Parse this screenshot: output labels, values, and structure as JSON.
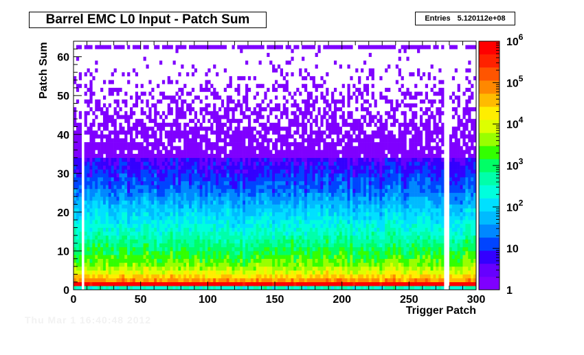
{
  "title": "Barrel EMC L0 Input - Patch Sum",
  "stats": {
    "label": "Entries",
    "value": "5.120112e+08"
  },
  "footer_text": "Thu Mar  1 16:40:48 2012",
  "chart_data": {
    "type": "heatmap",
    "title": "Barrel EMC L0 Input - Patch Sum",
    "xlabel": "Trigger Patch",
    "ylabel": "Patch Sum",
    "xlim": [
      0,
      300
    ],
    "ylim": [
      0,
      64
    ],
    "x_ticks": [
      0,
      50,
      100,
      150,
      200,
      250,
      300
    ],
    "y_ticks": [
      0,
      10,
      20,
      30,
      40,
      50,
      60
    ],
    "z_scale": "log",
    "zlim": [
      1,
      1000000
    ],
    "z_ticks": [
      {
        "base": "1",
        "exp": ""
      },
      {
        "base": "10",
        "exp": ""
      },
      {
        "base": "10",
        "exp": "2"
      },
      {
        "base": "10",
        "exp": "3"
      },
      {
        "base": "10",
        "exp": "4"
      },
      {
        "base": "10",
        "exp": "5"
      },
      {
        "base": "10",
        "exp": "6"
      }
    ],
    "colors": [
      "#7f00ff",
      "#6600ff",
      "#3300ff",
      "#0044ff",
      "#0088ff",
      "#00bbff",
      "#00e0ff",
      "#00ffdd",
      "#00ffaa",
      "#00ff66",
      "#33ff00",
      "#99ff00",
      "#ddff00",
      "#ffee00",
      "#ffbb00",
      "#ff8800",
      "#ff5500",
      "#ff2200",
      "#ff0000"
    ],
    "row_profile": [
      {
        "y": 0,
        "log10_count": 2.5
      },
      {
        "y": 1,
        "log10_count": 6.0
      },
      {
        "y": 2,
        "log10_count": 4.8
      },
      {
        "y": 4,
        "log10_count": 4.0
      },
      {
        "y": 6,
        "log10_count": 3.5
      },
      {
        "y": 10,
        "log10_count": 3.0
      },
      {
        "y": 15,
        "log10_count": 2.4
      },
      {
        "y": 20,
        "log10_count": 1.9
      },
      {
        "y": 25,
        "log10_count": 1.3
      },
      {
        "y": 30,
        "log10_count": 0.9
      },
      {
        "y": 35,
        "log10_count": 0.5
      },
      {
        "y": 40,
        "log10_count": 0.25
      },
      {
        "y": 45,
        "log10_count": 0.1
      },
      {
        "y": 62,
        "log10_count": 0.2
      }
    ],
    "empty_columns": [
      7,
      276,
      277,
      278
    ]
  }
}
